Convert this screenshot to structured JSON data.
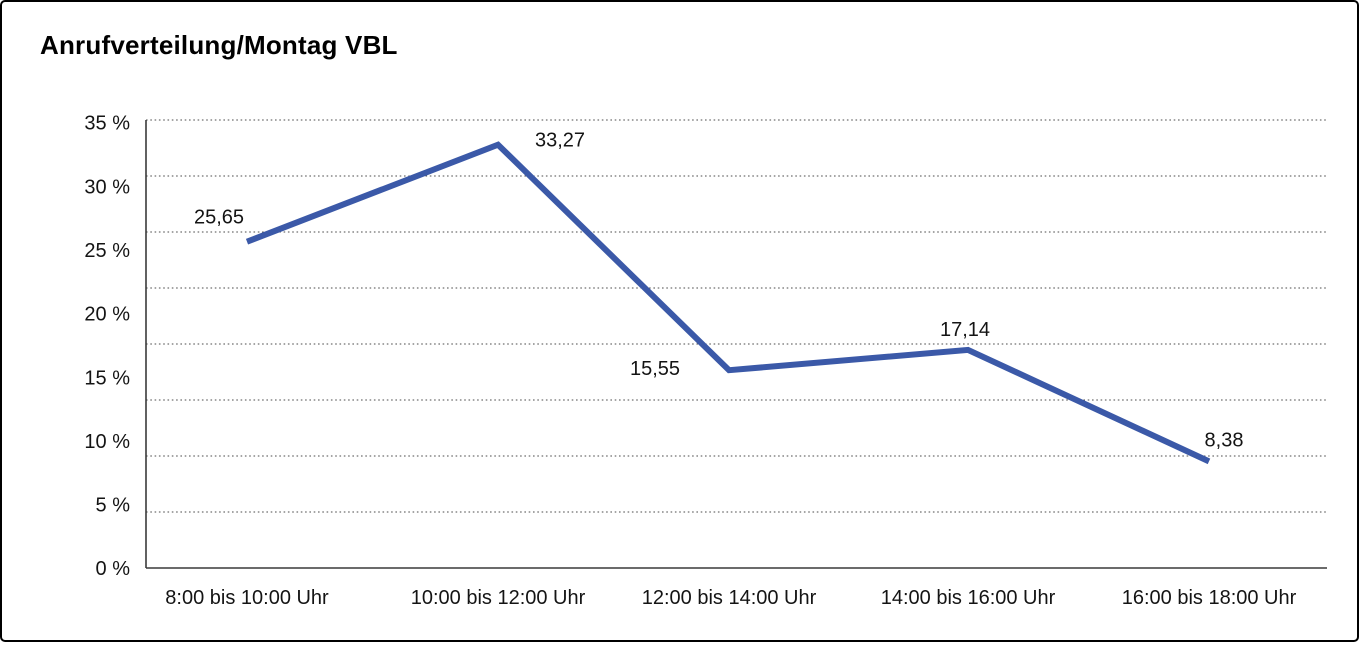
{
  "chart_data": {
    "type": "line",
    "title": "Anrufverteilung/Montag VBL",
    "categories": [
      "8:00 bis 10:00 Uhr",
      "10:00 bis 12:00 Uhr",
      "12:00 bis 14:00 Uhr",
      "14:00 bis 16:00 Uhr",
      "16:00 bis 18:00 Uhr"
    ],
    "values": [
      25.65,
      33.27,
      15.55,
      17.14,
      8.38
    ],
    "point_labels": [
      "25,65",
      "33,27",
      "15,55",
      "17,14",
      "8,38"
    ],
    "y_axis": {
      "ticks": [
        "35 %",
        "30 %",
        "25 %",
        "20 %",
        "15 %",
        "10 %",
        "5 %",
        "0 %"
      ],
      "tick_values": [
        35,
        30,
        25,
        20,
        15,
        10,
        5,
        0
      ]
    },
    "ylim": [
      0,
      35
    ],
    "xlabel": "",
    "ylabel": "",
    "grid": "horizontal-dotted",
    "legend": "none",
    "line_color": "#3B59A8",
    "text_color": "#141414",
    "frame_border_color": "#000000"
  }
}
